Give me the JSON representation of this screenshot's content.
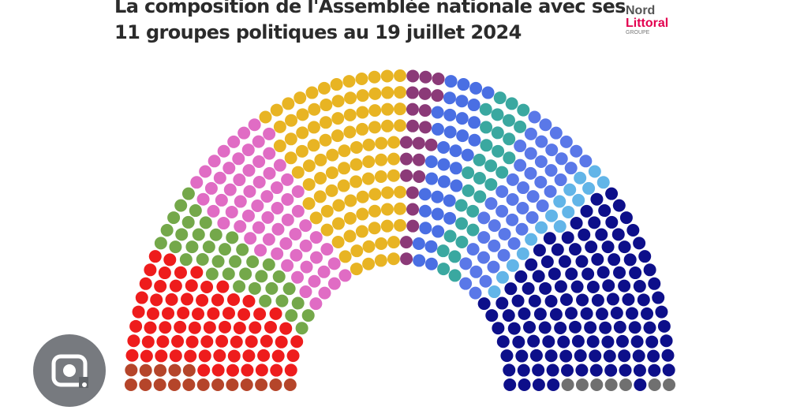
{
  "chart_data": {
    "type": "parliament",
    "title": "La composition de l'Assemblée nationale avec ses 11 groupes politiques au 19 juillet 2024",
    "values": [
      17,
      72,
      38,
      66,
      99,
      22,
      36,
      31,
      47,
      16,
      126,
      7
    ],
    "colors": [
      "#b5452a",
      "#ee1c1c",
      "#74a84a",
      "#e06cc4",
      "#e8b423",
      "#8b3a78",
      "#4a6fe3",
      "#3aa8a0",
      "#5a78e8",
      "#62b5e8",
      "#0d0f8a",
      "#707070"
    ]
  },
  "logo": {
    "line1": "Nord",
    "line2": "Littoral",
    "line3": "GROUPE"
  }
}
